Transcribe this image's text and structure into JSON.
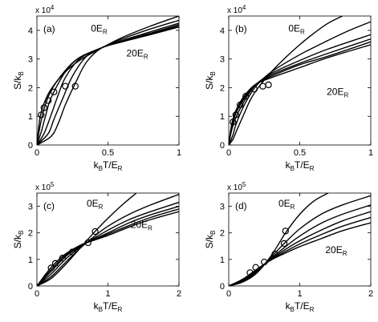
{
  "chart_data": [
    {
      "type": "line",
      "panel_label": "(a)",
      "xlabel": "k_BT/E_R",
      "ylabel": "S/k_B",
      "multiplier": "x 10^4",
      "xlim": [
        0,
        1
      ],
      "ylim": [
        0,
        45000
      ],
      "xticks": [
        "0",
        "0.5",
        "1"
      ],
      "yticks": [
        "0",
        "1",
        "2",
        "3",
        "4"
      ],
      "annotations": [
        "0E_R",
        "20E_R"
      ],
      "series": [
        {
          "x": [
            0,
            0.02,
            0.05,
            0.1,
            0.2,
            0.3,
            0.46,
            0.6,
            0.8,
            1.0
          ],
          "values": [
            0,
            9000,
            14500,
            19500,
            25500,
            29500,
            34000,
            37500,
            41500,
            45000
          ]
        },
        {
          "x": [
            0,
            0.02,
            0.05,
            0.1,
            0.2,
            0.3,
            0.46,
            0.6,
            0.8,
            1.0
          ],
          "values": [
            0,
            6000,
            12500,
            19000,
            26000,
            30500,
            34000,
            37000,
            40500,
            43500
          ]
        },
        {
          "x": [
            0,
            0.03,
            0.06,
            0.1,
            0.2,
            0.3,
            0.46,
            0.6,
            0.8,
            1.0
          ],
          "values": [
            0,
            4500,
            10000,
            16500,
            25500,
            30500,
            34000,
            36500,
            39500,
            42500
          ]
        },
        {
          "x": [
            0,
            0.05,
            0.1,
            0.15,
            0.2,
            0.3,
            0.46,
            0.6,
            0.8,
            1.0
          ],
          "values": [
            0,
            4000,
            10500,
            17500,
            23500,
            30000,
            34000,
            36300,
            39000,
            42000
          ]
        },
        {
          "x": [
            0,
            0.08,
            0.12,
            0.18,
            0.25,
            0.35,
            0.46,
            0.6,
            0.8,
            1.0
          ],
          "values": [
            0,
            4000,
            9000,
            16000,
            24000,
            31000,
            34000,
            36000,
            38800,
            41500
          ]
        },
        {
          "x": [
            0,
            0.1,
            0.15,
            0.2,
            0.27,
            0.35,
            0.46,
            0.6,
            0.8,
            1.0
          ],
          "values": [
            0,
            3000,
            7500,
            14000,
            21500,
            29000,
            34000,
            36000,
            38500,
            41200
          ]
        }
      ],
      "markers": {
        "x": [
          0.03,
          0.05,
          0.08,
          0.12,
          0.2,
          0.27
        ],
        "values": [
          10500,
          13000,
          15500,
          18500,
          20500,
          20500
        ]
      }
    },
    {
      "type": "line",
      "panel_label": "(b)",
      "xlabel": "k_BT/E_R",
      "ylabel": "S/k_B",
      "multiplier": "x 10^4",
      "xlim": [
        0,
        1
      ],
      "ylim": [
        0,
        45000
      ],
      "xticks": [
        "0",
        "0.5",
        "1"
      ],
      "yticks": [
        "0",
        "1",
        "2",
        "3",
        "4"
      ],
      "annotations": [
        "0E_R",
        "20E_R"
      ],
      "series": [
        {
          "x": [
            0,
            0.03,
            0.06,
            0.1,
            0.15,
            0.2,
            0.3,
            0.4,
            0.5,
            0.6,
            0.7,
            0.8
          ],
          "values": [
            0,
            2000,
            5500,
            10000,
            15500,
            19500,
            25500,
            30500,
            35000,
            39000,
            42500,
            45000
          ]
        },
        {
          "x": [
            0,
            0.03,
            0.05,
            0.1,
            0.15,
            0.2,
            0.3,
            0.5,
            0.7,
            0.85,
            1.0
          ],
          "values": [
            0,
            3500,
            7000,
            13000,
            17500,
            21000,
            25500,
            31500,
            36500,
            40000,
            43000
          ]
        },
        {
          "x": [
            0,
            0.02,
            0.05,
            0.1,
            0.15,
            0.2,
            0.3,
            0.5,
            0.7,
            1.0
          ],
          "values": [
            0,
            5000,
            9500,
            14500,
            18500,
            21500,
            25000,
            29500,
            33500,
            38500
          ]
        },
        {
          "x": [
            0,
            0.02,
            0.05,
            0.1,
            0.15,
            0.2,
            0.3,
            0.5,
            0.7,
            1.0
          ],
          "values": [
            0,
            6000,
            11000,
            15500,
            19000,
            21500,
            24500,
            28500,
            32000,
            37000
          ]
        },
        {
          "x": [
            0,
            0.02,
            0.05,
            0.1,
            0.15,
            0.2,
            0.3,
            0.5,
            0.7,
            1.0
          ],
          "values": [
            0,
            6500,
            11500,
            16000,
            19000,
            21500,
            24000,
            28000,
            31000,
            36000
          ]
        },
        {
          "x": [
            0,
            0.02,
            0.05,
            0.1,
            0.15,
            0.2,
            0.3,
            0.5,
            0.7,
            1.0
          ],
          "values": [
            0,
            7000,
            12000,
            16500,
            19500,
            21500,
            23500,
            27000,
            30500,
            35000
          ]
        }
      ],
      "markers": {
        "x": [
          0.03,
          0.05,
          0.08,
          0.12,
          0.18,
          0.24,
          0.28
        ],
        "values": [
          8000,
          10500,
          14000,
          17000,
          19500,
          20500,
          21000
        ]
      }
    },
    {
      "type": "line",
      "panel_label": "(c)",
      "xlabel": "k_BT/E_R",
      "ylabel": "S/k_B",
      "multiplier": "x 10^5",
      "xlim": [
        0,
        2
      ],
      "ylim": [
        0,
        350000
      ],
      "xticks": [
        "0",
        "1",
        "2"
      ],
      "yticks": [
        "0",
        "1",
        "2",
        "3"
      ],
      "annotations": [
        "0E_R",
        "20E_R"
      ],
      "series": [
        {
          "x": [
            0,
            0.2,
            0.4,
            0.6,
            0.8,
            1.0,
            1.2,
            1.4
          ],
          "values": [
            0,
            28000,
            80000,
            140000,
            200000,
            255000,
            305000,
            350000
          ]
        },
        {
          "x": [
            0,
            0.2,
            0.4,
            0.6,
            0.8,
            1.0,
            1.3,
            1.6,
            2.0
          ],
          "values": [
            0,
            35000,
            88000,
            140000,
            185000,
            225000,
            270000,
            305000,
            345000
          ]
        },
        {
          "x": [
            0,
            0.2,
            0.4,
            0.6,
            0.7,
            1.0,
            1.3,
            1.6,
            2.0
          ],
          "values": [
            0,
            45000,
            100000,
            145000,
            163000,
            210000,
            250000,
            280000,
            315000
          ]
        },
        {
          "x": [
            0,
            0.2,
            0.4,
            0.6,
            0.7,
            1.0,
            1.3,
            1.6,
            2.0
          ],
          "values": [
            0,
            55000,
            110000,
            148000,
            163000,
            200000,
            238000,
            268000,
            300000
          ]
        },
        {
          "x": [
            0,
            0.2,
            0.4,
            0.6,
            0.7,
            1.0,
            1.3,
            1.6,
            2.0
          ],
          "values": [
            0,
            62000,
            115000,
            150000,
            163000,
            195000,
            228000,
            258000,
            290000
          ]
        },
        {
          "x": [
            0,
            0.2,
            0.4,
            0.6,
            0.7,
            1.0,
            1.3,
            1.6,
            2.0
          ],
          "values": [
            0,
            70000,
            120000,
            152000,
            163000,
            190000,
            222000,
            250000,
            280000
          ]
        }
      ],
      "markers": {
        "x": [
          0.2,
          0.26,
          0.36,
          0.5,
          0.72,
          0.82
        ],
        "values": [
          68000,
          85000,
          105000,
          128000,
          163000,
          205000
        ]
      }
    },
    {
      "type": "line",
      "panel_label": "(d)",
      "xlabel": "k_BT/E_R",
      "ylabel": "S/k_B",
      "multiplier": "x 10^5",
      "xlim": [
        0,
        2
      ],
      "ylim": [
        0,
        350000
      ],
      "xticks": [
        "0",
        "1",
        "2"
      ],
      "yticks": [
        "0",
        "1",
        "2",
        "3"
      ],
      "annotations": [
        "0E_R",
        "20E_R"
      ],
      "series": [
        {
          "x": [
            0,
            0.2,
            0.4,
            0.6,
            0.8,
            1.0,
            1.2,
            1.4
          ],
          "values": [
            0,
            15000,
            50000,
            115000,
            200000,
            270000,
            320000,
            350000
          ]
        },
        {
          "x": [
            0,
            0.2,
            0.4,
            0.6,
            0.8,
            1.0,
            1.3,
            1.6,
            2.0
          ],
          "values": [
            0,
            18000,
            55000,
            110000,
            165000,
            215000,
            270000,
            305000,
            340000
          ]
        },
        {
          "x": [
            0,
            0.2,
            0.4,
            0.6,
            0.8,
            1.0,
            1.3,
            1.6,
            2.0
          ],
          "values": [
            0,
            20000,
            58000,
            105000,
            148000,
            188000,
            236000,
            270000,
            305000
          ]
        },
        {
          "x": [
            0,
            0.2,
            0.4,
            0.6,
            0.8,
            1.0,
            1.3,
            1.6,
            2.0
          ],
          "values": [
            0,
            22000,
            60000,
            102000,
            138000,
            170000,
            210000,
            245000,
            280000
          ]
        },
        {
          "x": [
            0,
            0.2,
            0.4,
            0.6,
            0.8,
            1.0,
            1.3,
            1.6,
            2.0
          ],
          "values": [
            0,
            24000,
            62000,
            100000,
            130000,
            158000,
            193000,
            225000,
            258000
          ]
        },
        {
          "x": [
            0,
            0.2,
            0.4,
            0.6,
            0.8,
            1.0,
            1.3,
            1.6,
            2.0
          ],
          "values": [
            0,
            26000,
            64000,
            98000,
            124000,
            148000,
            178000,
            208000,
            238000
          ]
        }
      ],
      "markers": {
        "x": [
          0.3,
          0.38,
          0.5,
          0.65,
          0.78,
          0.8
        ],
        "values": [
          50000,
          70000,
          90000,
          120000,
          160000,
          207000
        ]
      }
    }
  ]
}
